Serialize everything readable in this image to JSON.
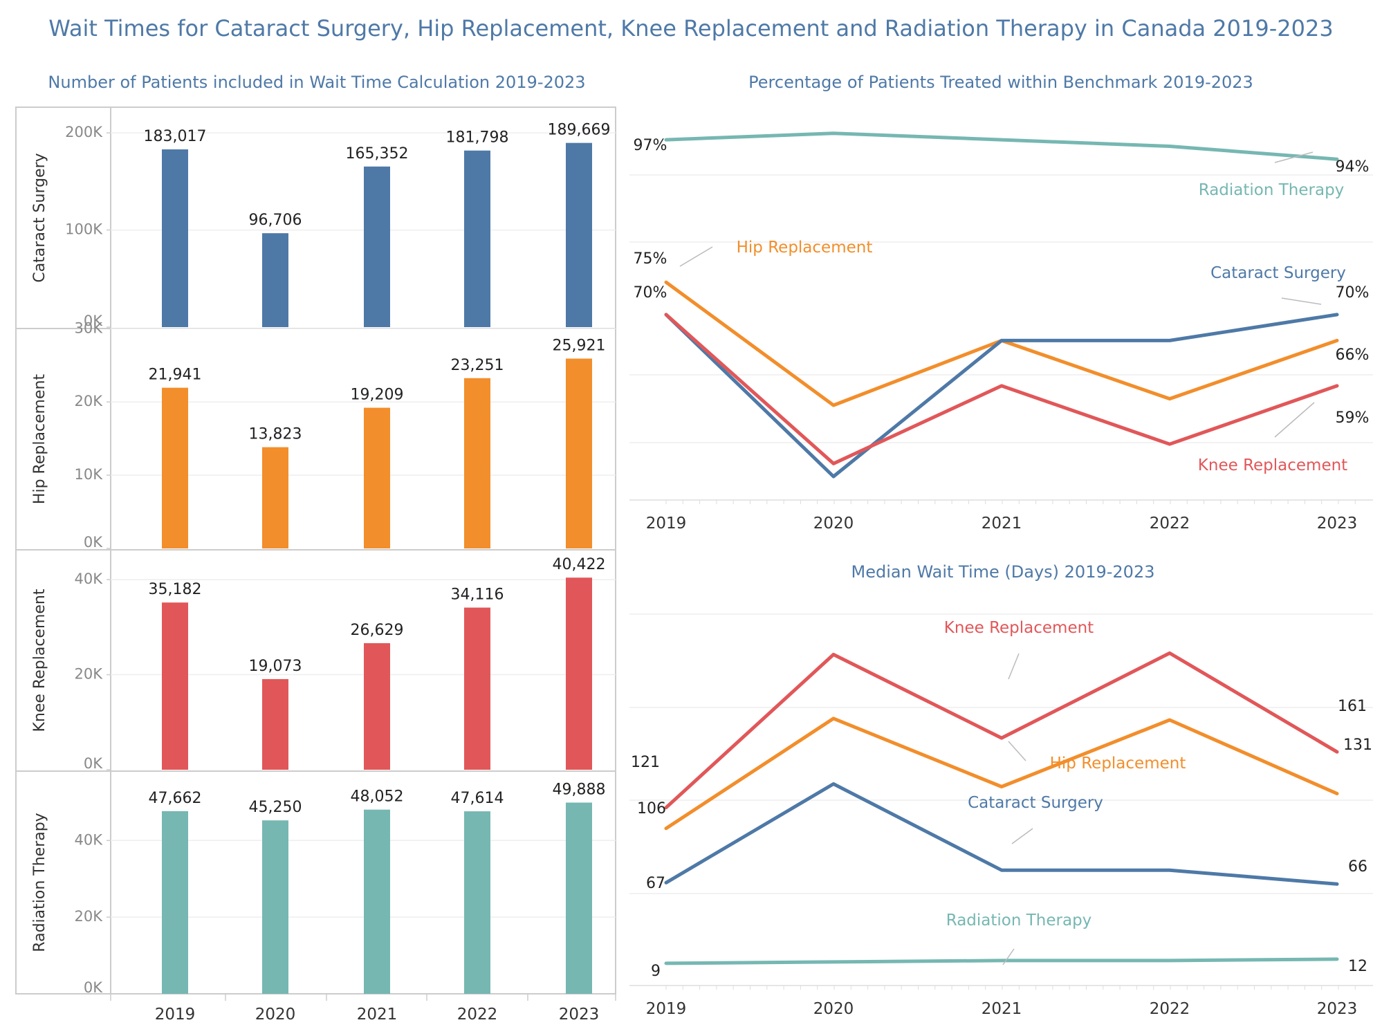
{
  "title": "Wait Times for Cataract Surgery, Hip Replacement, Knee Replacement and Radiation Therapy in Canada 2019-2023",
  "colors": {
    "cataract": "#4e79a7",
    "hip": "#f28e2b",
    "knee": "#e15759",
    "radiation": "#76b7b2",
    "title": "#4e79a7",
    "axis_text": "#888888",
    "label_text": "#222222"
  },
  "chart_data": [
    {
      "type": "bar",
      "title": "Number of Patients included in Wait Time Calculation 2019-2023",
      "categories": [
        "2019",
        "2020",
        "2021",
        "2022",
        "2023"
      ],
      "panels": [
        {
          "name": "Cataract Surgery",
          "key": "cataract",
          "values": [
            183017,
            96706,
            165352,
            181798,
            189669
          ],
          "labels": [
            "183,017",
            "96,706",
            "165,352",
            "181,798",
            "189,669"
          ],
          "ylim": [
            0,
            230000
          ],
          "ticks": [
            0,
            100000,
            200000
          ],
          "tick_labels": [
            "0K",
            "100K",
            "200K"
          ]
        },
        {
          "name": "Hip Replacement",
          "key": "hip",
          "values": [
            21941,
            13823,
            19209,
            23251,
            25921
          ],
          "labels": [
            "21,941",
            "13,823",
            "19,209",
            "23,251",
            "25,921"
          ],
          "ylim": [
            0,
            30500
          ],
          "ticks": [
            0,
            10000,
            20000,
            30000
          ],
          "tick_labels": [
            "0K",
            "10K",
            "20K",
            "30K"
          ]
        },
        {
          "name": "Knee Replacement",
          "key": "knee",
          "values": [
            35182,
            19073,
            26629,
            34116,
            40422
          ],
          "labels": [
            "35,182",
            "19,073",
            "26,629",
            "34,116",
            "40,422"
          ],
          "ylim": [
            0,
            47000
          ],
          "ticks": [
            0,
            20000,
            40000
          ],
          "tick_labels": [
            "0K",
            "20K",
            "40K"
          ]
        },
        {
          "name": "Radiation Therapy",
          "key": "radiation",
          "values": [
            47662,
            45250,
            48052,
            47614,
            49888
          ],
          "labels": [
            "47,662",
            "45,250",
            "48,052",
            "47,614",
            "49,888"
          ],
          "ylim": [
            0,
            59000
          ],
          "ticks": [
            0,
            20000,
            40000
          ],
          "tick_labels": [
            "0K",
            "20K",
            "40K"
          ]
        }
      ]
    },
    {
      "type": "line",
      "title": "Percentage of Patients Treated within Benchmark 2019-2023",
      "x": [
        "2019",
        "2020",
        "2021",
        "2022",
        "2023"
      ],
      "ylim": [
        45,
        100
      ],
      "series": [
        {
          "name": "Radiation Therapy",
          "key": "radiation",
          "values": [
            97,
            98,
            97,
            96,
            94
          ],
          "start_label": "97%",
          "end_label": "94%"
        },
        {
          "name": "Hip Replacement",
          "key": "hip",
          "values": [
            75,
            56,
            66,
            57,
            66
          ],
          "start_label": "75%",
          "end_label": "66%"
        },
        {
          "name": "Cataract Surgery",
          "key": "cataract",
          "values": [
            70,
            45,
            66,
            66,
            70
          ],
          "start_label": "70%",
          "end_label": "70%"
        },
        {
          "name": "Knee Replacement",
          "key": "knee",
          "values": [
            70,
            47,
            59,
            50,
            59
          ],
          "start_label": "",
          "end_label": "59%"
        }
      ]
    },
    {
      "type": "line",
      "title": "Median Wait Time (Days) 2019-2023",
      "x": [
        "2019",
        "2020",
        "2021",
        "2022",
        "2023"
      ],
      "ylim": [
        0,
        270
      ],
      "series": [
        {
          "name": "Knee Replacement",
          "key": "knee",
          "values": [
            121,
            231,
            171,
            232,
            161
          ],
          "start_label": "121",
          "end_label": "161"
        },
        {
          "name": "Hip Replacement",
          "key": "hip",
          "values": [
            106,
            185,
            136,
            184,
            131
          ],
          "start_label": "106",
          "end_label": "131"
        },
        {
          "name": "Cataract Surgery",
          "key": "cataract",
          "values": [
            67,
            138,
            76,
            76,
            66
          ],
          "start_label": "67",
          "end_label": "66"
        },
        {
          "name": "Radiation Therapy",
          "key": "radiation",
          "values": [
            9,
            10,
            11,
            11,
            12
          ],
          "start_label": "9",
          "end_label": "12"
        }
      ]
    }
  ]
}
